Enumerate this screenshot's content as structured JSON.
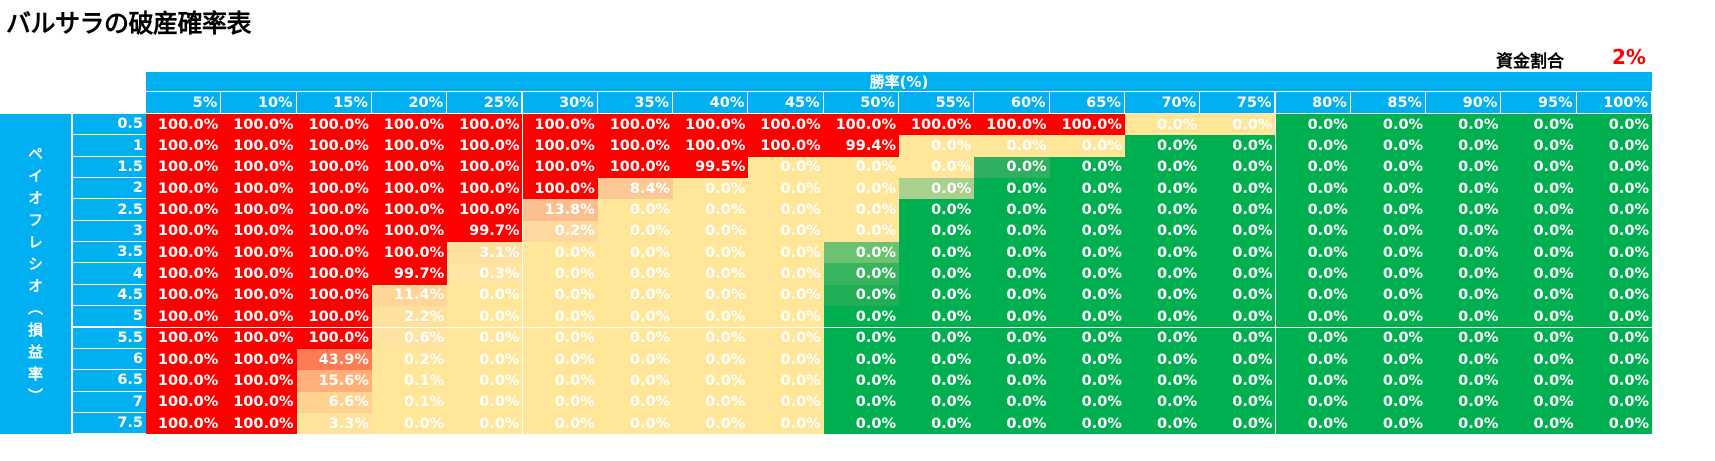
{
  "title": "バルサラの破産確率表",
  "fund": {
    "label": "資金割合",
    "value": "2%",
    "value_color": "#ff0000"
  },
  "column_group_label": "勝率(%)",
  "row_group_label": "ペイオフレシオ（損益率）",
  "colors": {
    "header": "#00b0f0",
    "red": "#ff0000",
    "green": "#00b050",
    "yellow": "#ffe699"
  },
  "columns": [
    "5%",
    "10%",
    "15%",
    "20%",
    "25%",
    "30%",
    "35%",
    "40%",
    "45%",
    "50%",
    "55%",
    "60%",
    "65%",
    "70%",
    "75%",
    "80%",
    "85%",
    "90%",
    "95%",
    "100%"
  ],
  "rows": [
    "0.5",
    "1",
    "1.5",
    "2",
    "2.5",
    "3",
    "3.5",
    "4",
    "4.5",
    "5",
    "5.5",
    "6",
    "6.5",
    "7",
    "7.5"
  ],
  "table": [
    [
      "100.0%",
      "100.0%",
      "100.0%",
      "100.0%",
      "100.0%",
      "100.0%",
      "100.0%",
      "100.0%",
      "100.0%",
      "100.0%",
      "100.0%",
      "100.0%",
      "100.0%",
      "0.0%",
      "0.0%",
      "0.0%",
      "0.0%",
      "0.0%",
      "0.0%",
      "0.0%"
    ],
    [
      "100.0%",
      "100.0%",
      "100.0%",
      "100.0%",
      "100.0%",
      "100.0%",
      "100.0%",
      "100.0%",
      "100.0%",
      "99.4%",
      "0.0%",
      "0.0%",
      "0.0%",
      "0.0%",
      "0.0%",
      "0.0%",
      "0.0%",
      "0.0%",
      "0.0%",
      "0.0%"
    ],
    [
      "100.0%",
      "100.0%",
      "100.0%",
      "100.0%",
      "100.0%",
      "100.0%",
      "100.0%",
      "99.5%",
      "0.0%",
      "0.0%",
      "0.0%",
      "0.0%",
      "0.0%",
      "0.0%",
      "0.0%",
      "0.0%",
      "0.0%",
      "0.0%",
      "0.0%",
      "0.0%"
    ],
    [
      "100.0%",
      "100.0%",
      "100.0%",
      "100.0%",
      "100.0%",
      "100.0%",
      "8.4%",
      "0.0%",
      "0.0%",
      "0.0%",
      "0.0%",
      "0.0%",
      "0.0%",
      "0.0%",
      "0.0%",
      "0.0%",
      "0.0%",
      "0.0%",
      "0.0%",
      "0.0%"
    ],
    [
      "100.0%",
      "100.0%",
      "100.0%",
      "100.0%",
      "100.0%",
      "13.8%",
      "0.0%",
      "0.0%",
      "0.0%",
      "0.0%",
      "0.0%",
      "0.0%",
      "0.0%",
      "0.0%",
      "0.0%",
      "0.0%",
      "0.0%",
      "0.0%",
      "0.0%",
      "0.0%"
    ],
    [
      "100.0%",
      "100.0%",
      "100.0%",
      "100.0%",
      "99.7%",
      "0.2%",
      "0.0%",
      "0.0%",
      "0.0%",
      "0.0%",
      "0.0%",
      "0.0%",
      "0.0%",
      "0.0%",
      "0.0%",
      "0.0%",
      "0.0%",
      "0.0%",
      "0.0%",
      "0.0%"
    ],
    [
      "100.0%",
      "100.0%",
      "100.0%",
      "100.0%",
      "3.1%",
      "0.0%",
      "0.0%",
      "0.0%",
      "0.0%",
      "0.0%",
      "0.0%",
      "0.0%",
      "0.0%",
      "0.0%",
      "0.0%",
      "0.0%",
      "0.0%",
      "0.0%",
      "0.0%",
      "0.0%"
    ],
    [
      "100.0%",
      "100.0%",
      "100.0%",
      "99.7%",
      "0.3%",
      "0.0%",
      "0.0%",
      "0.0%",
      "0.0%",
      "0.0%",
      "0.0%",
      "0.0%",
      "0.0%",
      "0.0%",
      "0.0%",
      "0.0%",
      "0.0%",
      "0.0%",
      "0.0%",
      "0.0%"
    ],
    [
      "100.0%",
      "100.0%",
      "100.0%",
      "11.4%",
      "0.0%",
      "0.0%",
      "0.0%",
      "0.0%",
      "0.0%",
      "0.0%",
      "0.0%",
      "0.0%",
      "0.0%",
      "0.0%",
      "0.0%",
      "0.0%",
      "0.0%",
      "0.0%",
      "0.0%",
      "0.0%"
    ],
    [
      "100.0%",
      "100.0%",
      "100.0%",
      "2.2%",
      "0.0%",
      "0.0%",
      "0.0%",
      "0.0%",
      "0.0%",
      "0.0%",
      "0.0%",
      "0.0%",
      "0.0%",
      "0.0%",
      "0.0%",
      "0.0%",
      "0.0%",
      "0.0%",
      "0.0%",
      "0.0%"
    ],
    [
      "100.0%",
      "100.0%",
      "100.0%",
      "0.6%",
      "0.0%",
      "0.0%",
      "0.0%",
      "0.0%",
      "0.0%",
      "0.0%",
      "0.0%",
      "0.0%",
      "0.0%",
      "0.0%",
      "0.0%",
      "0.0%",
      "0.0%",
      "0.0%",
      "0.0%",
      "0.0%"
    ],
    [
      "100.0%",
      "100.0%",
      "43.9%",
      "0.2%",
      "0.0%",
      "0.0%",
      "0.0%",
      "0.0%",
      "0.0%",
      "0.0%",
      "0.0%",
      "0.0%",
      "0.0%",
      "0.0%",
      "0.0%",
      "0.0%",
      "0.0%",
      "0.0%",
      "0.0%",
      "0.0%"
    ],
    [
      "100.0%",
      "100.0%",
      "15.6%",
      "0.1%",
      "0.0%",
      "0.0%",
      "0.0%",
      "0.0%",
      "0.0%",
      "0.0%",
      "0.0%",
      "0.0%",
      "0.0%",
      "0.0%",
      "0.0%",
      "0.0%",
      "0.0%",
      "0.0%",
      "0.0%",
      "0.0%"
    ],
    [
      "100.0%",
      "100.0%",
      "6.6%",
      "0.1%",
      "0.0%",
      "0.0%",
      "0.0%",
      "0.0%",
      "0.0%",
      "0.0%",
      "0.0%",
      "0.0%",
      "0.0%",
      "0.0%",
      "0.0%",
      "0.0%",
      "0.0%",
      "0.0%",
      "0.0%",
      "0.0%"
    ],
    [
      "100.0%",
      "100.0%",
      "3.3%",
      "0.0%",
      "0.0%",
      "0.0%",
      "0.0%",
      "0.0%",
      "0.0%",
      "0.0%",
      "0.0%",
      "0.0%",
      "0.0%",
      "0.0%",
      "0.0%",
      "0.0%",
      "0.0%",
      "0.0%",
      "0.0%",
      "0.0%"
    ]
  ],
  "cell_colors": [
    [
      "r",
      "r",
      "r",
      "r",
      "r",
      "r",
      "r",
      "r",
      "r",
      "r",
      "r",
      "r",
      "r",
      "y",
      "y",
      "g",
      "g",
      "g",
      "g",
      "g"
    ],
    [
      "r",
      "r",
      "r",
      "r",
      "r",
      "r",
      "r",
      "r",
      "r",
      "r",
      "y",
      "y",
      "y",
      "g",
      "g",
      "g",
      "g",
      "g",
      "g",
      "g"
    ],
    [
      "r",
      "r",
      "r",
      "r",
      "r",
      "r",
      "r",
      "r",
      "y",
      "y",
      "y",
      "#2eb060",
      "g",
      "g",
      "g",
      "g",
      "g",
      "g",
      "g",
      "g"
    ],
    [
      "r",
      "r",
      "r",
      "r",
      "r",
      "r",
      "#fcc894",
      "y",
      "y",
      "y",
      "#a9d18e",
      "g",
      "g",
      "g",
      "g",
      "g",
      "g",
      "g",
      "g",
      "g"
    ],
    [
      "r",
      "r",
      "r",
      "r",
      "r",
      "#fbbf8f",
      "y",
      "y",
      "y",
      "y",
      "g",
      "g",
      "g",
      "g",
      "g",
      "g",
      "g",
      "g",
      "g",
      "g"
    ],
    [
      "r",
      "r",
      "r",
      "r",
      "r",
      "#ffd8a0",
      "y",
      "y",
      "y",
      "y",
      "g",
      "g",
      "g",
      "g",
      "g",
      "g",
      "g",
      "g",
      "g",
      "g"
    ],
    [
      "r",
      "r",
      "r",
      "r",
      "#ffe0a0",
      "y",
      "y",
      "y",
      "y",
      "#6cc271",
      "g",
      "g",
      "g",
      "g",
      "g",
      "g",
      "g",
      "g",
      "g",
      "g"
    ],
    [
      "r",
      "r",
      "r",
      "r",
      "#ffe4a2",
      "y",
      "y",
      "y",
      "y",
      "#38b35e",
      "g",
      "g",
      "g",
      "g",
      "g",
      "g",
      "g",
      "g",
      "g",
      "g"
    ],
    [
      "r",
      "r",
      "r",
      "#ffd698",
      "y",
      "y",
      "y",
      "y",
      "y",
      "#22ad57",
      "g",
      "g",
      "g",
      "g",
      "g",
      "g",
      "g",
      "g",
      "g",
      "g"
    ],
    [
      "r",
      "r",
      "r",
      "#ffe19e",
      "y",
      "y",
      "y",
      "y",
      "y",
      "g",
      "g",
      "g",
      "g",
      "g",
      "g",
      "g",
      "g",
      "g",
      "g",
      "g"
    ],
    [
      "r",
      "r",
      "r",
      "#ffe3a0",
      "y",
      "y",
      "y",
      "y",
      "y",
      "g",
      "g",
      "g",
      "g",
      "g",
      "g",
      "g",
      "g",
      "g",
      "g",
      "g"
    ],
    [
      "r",
      "r",
      "#ff7b52",
      "y",
      "y",
      "y",
      "y",
      "y",
      "y",
      "g",
      "g",
      "g",
      "g",
      "g",
      "g",
      "g",
      "g",
      "g",
      "g",
      "g"
    ],
    [
      "r",
      "r",
      "#ffb07a",
      "y",
      "y",
      "y",
      "y",
      "y",
      "y",
      "g",
      "g",
      "g",
      "g",
      "g",
      "g",
      "g",
      "g",
      "g",
      "g",
      "g"
    ],
    [
      "r",
      "r",
      "#ffd292",
      "y",
      "y",
      "y",
      "y",
      "y",
      "y",
      "g",
      "g",
      "g",
      "g",
      "g",
      "g",
      "g",
      "g",
      "g",
      "g",
      "g"
    ],
    [
      "r",
      "r",
      "#ffe29c",
      "y",
      "y",
      "y",
      "y",
      "y",
      "y",
      "g",
      "g",
      "g",
      "g",
      "g",
      "g",
      "g",
      "g",
      "g",
      "g",
      "g"
    ]
  ]
}
